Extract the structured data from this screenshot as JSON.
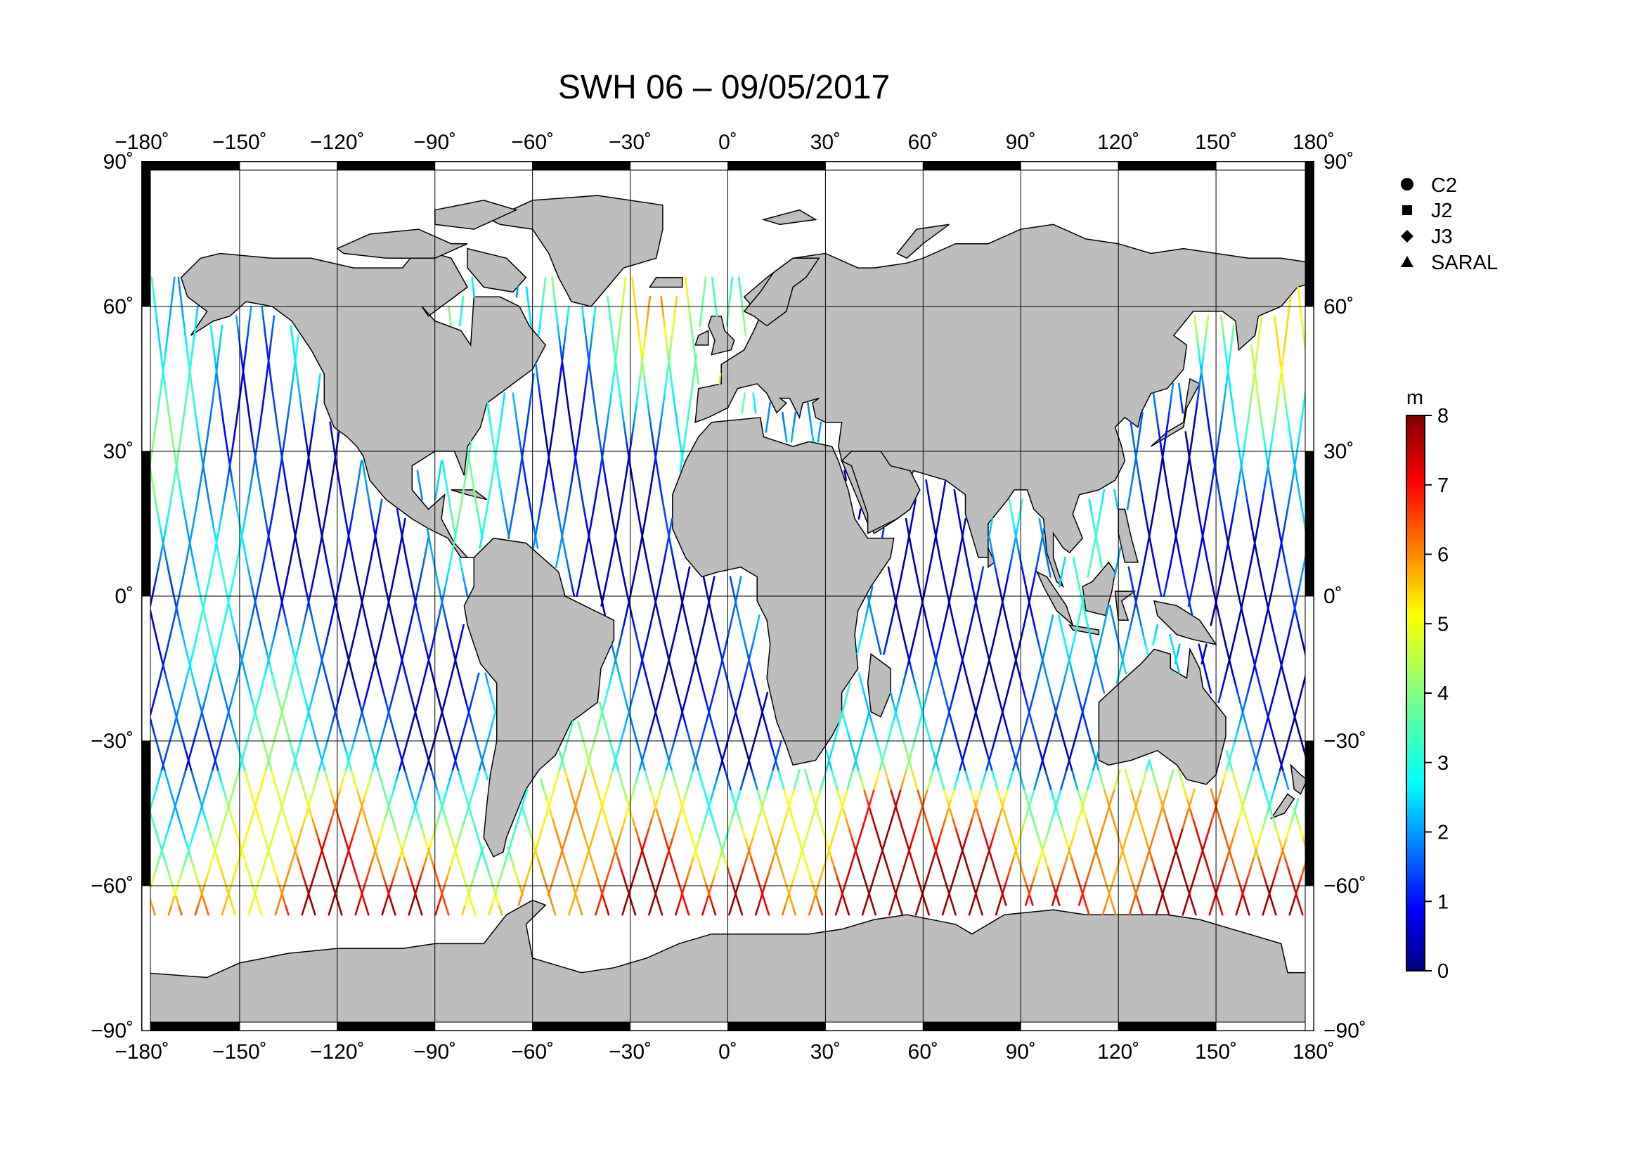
{
  "title": "SWH 06 – 09/05/2017",
  "lon_ticks": [
    "−180˚",
    "−150˚",
    "−120˚",
    "−90˚",
    "−60˚",
    "−30˚",
    "0˚",
    "30˚",
    "60˚",
    "90˚",
    "120˚",
    "150˚",
    "180˚"
  ],
  "lat_ticks": [
    "90˚",
    "60˚",
    "30˚",
    "0˚",
    "−30˚",
    "−60˚",
    "−90˚"
  ],
  "legend": [
    {
      "label": "C2",
      "symbol": "circle-icon"
    },
    {
      "label": "J2",
      "symbol": "square-icon"
    },
    {
      "label": "J3",
      "symbol": "diamond-icon"
    },
    {
      "label": "SARAL",
      "symbol": "triangle-icon"
    }
  ],
  "colorbar": {
    "unit": "m",
    "min": 0,
    "max": 8,
    "ticks": [
      "0",
      "1",
      "2",
      "3",
      "4",
      "5",
      "6",
      "7",
      "8"
    ],
    "colormap": "jet"
  },
  "colors": {
    "land": "#bdbdbd",
    "ocean": "#ffffff",
    "grid": "#000000"
  },
  "map": {
    "projection": "equirectangular",
    "lon_range": [
      -180,
      180
    ],
    "lat_range": [
      -90,
      90
    ],
    "track_lat_range": [
      -66,
      66
    ],
    "region_notes": {
      "southern_ocean_swh": "high (4-7 m)",
      "tropics_swh": "low (1-2 m)",
      "north_atlantic_swh": "moderate (2-5 m)"
    }
  }
}
